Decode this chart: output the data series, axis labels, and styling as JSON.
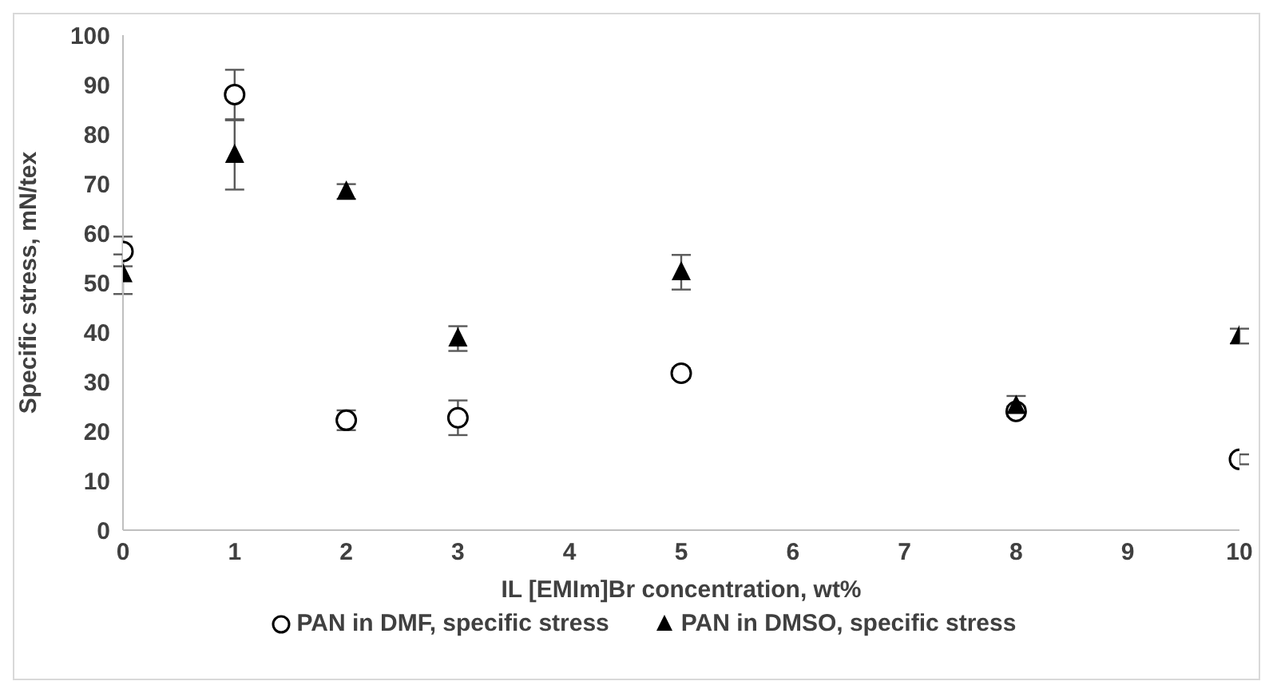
{
  "chart_data": {
    "type": "scatter",
    "xlabel": "IL [EMIm]Br concentration, wt%",
    "ylabel": "Specific stress, mN/tex",
    "x": [
      0,
      1,
      2,
      3,
      5,
      8,
      10
    ],
    "series": [
      {
        "name": "PAN in DMF, specific stress",
        "color": "#000000",
        "marker": "circle",
        "values": [
          56.3,
          88,
          22.2,
          22.7,
          31.7,
          24,
          14.3
        ],
        "errors": [
          3,
          5,
          2,
          3.5,
          1,
          1,
          1
        ]
      },
      {
        "name": "PAN in DMSO, specific stress",
        "color": "#000000",
        "marker": "triangle",
        "values": [
          51.7,
          75.8,
          68.4,
          38.7,
          52.1,
          25.1,
          39.2
        ],
        "errors": [
          4,
          7,
          1.5,
          2.5,
          3.5,
          2,
          1.5
        ]
      }
    ],
    "xlim": [
      0,
      10
    ],
    "xticks": [
      0,
      1,
      2,
      3,
      4,
      5,
      6,
      7,
      8,
      9,
      10
    ],
    "ylim": [
      0,
      100
    ],
    "yticks": [
      0,
      10,
      20,
      30,
      40,
      50,
      60,
      70,
      80,
      90,
      100
    ],
    "legend": "bottom"
  }
}
